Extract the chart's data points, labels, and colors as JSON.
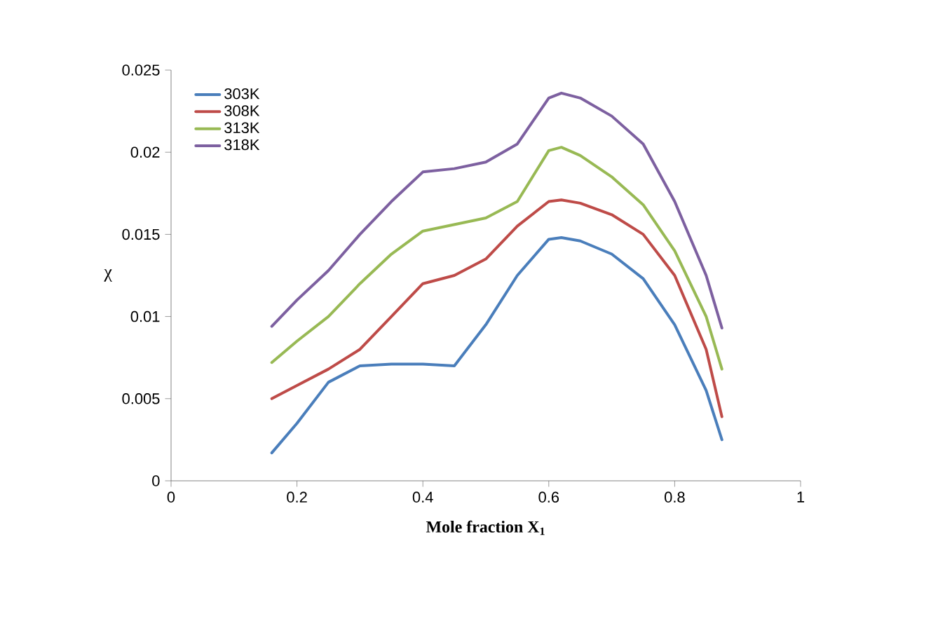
{
  "chart_data": {
    "type": "line",
    "xlabel": "Mole fraction X$_{1}$",
    "ylabel": "χ",
    "xlim": [
      0,
      1
    ],
    "xticks": [
      0,
      0.2,
      0.4,
      0.6,
      0.8,
      1
    ],
    "ylim": [
      0,
      0.025
    ],
    "yticks": [
      0,
      0.005,
      0.01,
      0.015,
      0.02,
      0.025
    ],
    "grid": false,
    "legend": "top left",
    "marker": "none",
    "line_style": "solid",
    "x": [
      0.16,
      0.2,
      0.25,
      0.3,
      0.35,
      0.4,
      0.45,
      0.5,
      0.55,
      0.6,
      0.62,
      0.65,
      0.7,
      0.75,
      0.8,
      0.85,
      0.875
    ],
    "series": [
      {
        "name": "303K",
        "color": "#4a7ebb",
        "values": [
          0.0017,
          0.0035,
          0.006,
          0.007,
          0.0071,
          0.0071,
          0.007,
          0.0095,
          0.0125,
          0.0147,
          0.0148,
          0.0146,
          0.0138,
          0.0123,
          0.0095,
          0.0055,
          0.0025
        ]
      },
      {
        "name": "308K",
        "color": "#be4b48",
        "values": [
          0.005,
          0.0058,
          0.0068,
          0.008,
          0.01,
          0.012,
          0.0125,
          0.0135,
          0.0155,
          0.017,
          0.0171,
          0.0169,
          0.0162,
          0.015,
          0.0125,
          0.008,
          0.0039
        ]
      },
      {
        "name": "313K",
        "color": "#98b954",
        "values": [
          0.0072,
          0.0085,
          0.01,
          0.012,
          0.0138,
          0.0152,
          0.0156,
          0.016,
          0.017,
          0.0201,
          0.0203,
          0.0198,
          0.0185,
          0.0168,
          0.014,
          0.01,
          0.0068
        ]
      },
      {
        "name": "318K",
        "color": "#7d60a0",
        "values": [
          0.0094,
          0.011,
          0.0128,
          0.015,
          0.017,
          0.0188,
          0.019,
          0.0194,
          0.0205,
          0.0233,
          0.0236,
          0.0233,
          0.0222,
          0.0205,
          0.017,
          0.0125,
          0.0093
        ]
      }
    ]
  }
}
